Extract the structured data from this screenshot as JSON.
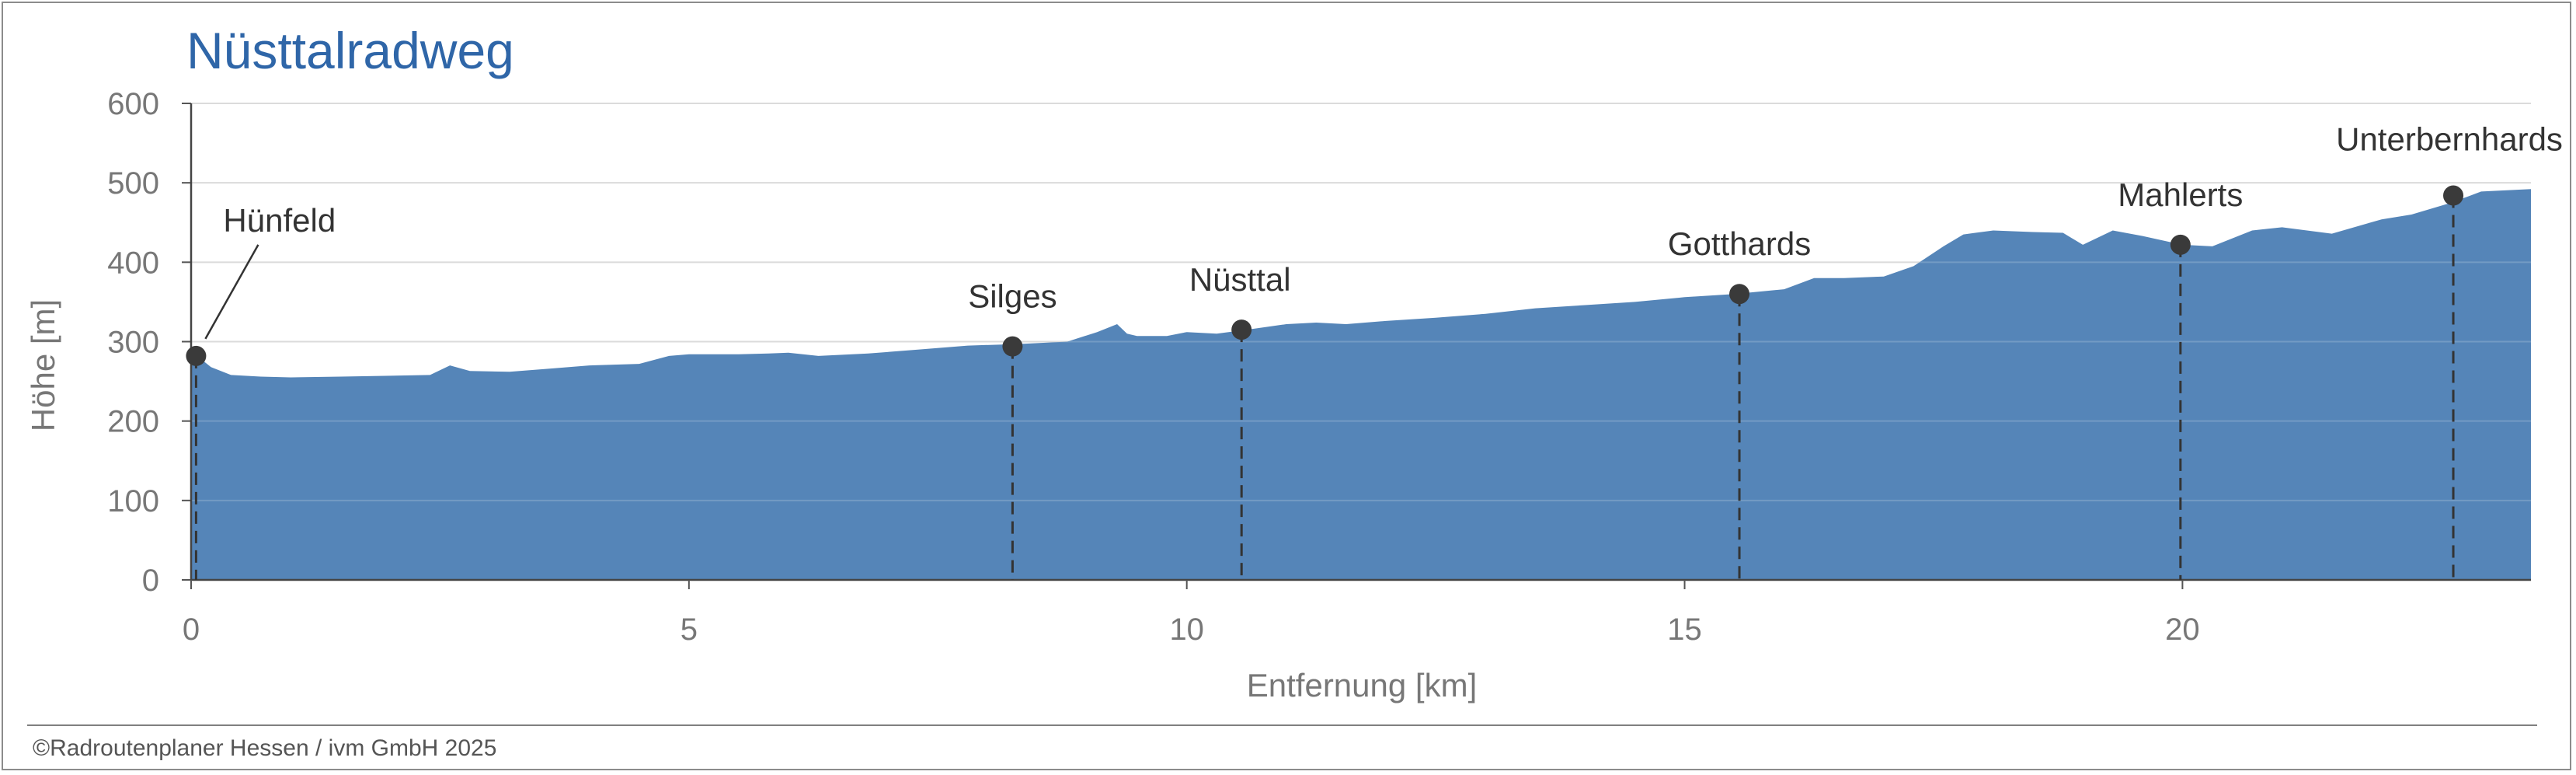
{
  "chart_data": {
    "type": "area",
    "title": "Nüsttalradweg",
    "xlabel": "Entfernung [km]",
    "ylabel": "Höhe [m]",
    "xlim": [
      0,
      23.5
    ],
    "ylim": [
      0,
      600
    ],
    "xticks": [
      0,
      5,
      10,
      15,
      20
    ],
    "yticks": [
      0,
      100,
      200,
      300,
      400,
      500,
      600
    ],
    "grid": true,
    "fill_color": "#5585b8",
    "series": [
      {
        "x": [
          0,
          0.1,
          0.2,
          0.4,
          0.7,
          1.0,
          1.5,
          2.0,
          2.4,
          2.6,
          2.8,
          3.2,
          3.6,
          4.0,
          4.5,
          4.8,
          5.0,
          5.5,
          5.8,
          6.0,
          6.3,
          6.8,
          7.3,
          7.8,
          8.3,
          8.8,
          9.1,
          9.3,
          9.4,
          9.5,
          9.8,
          10.0,
          10.3,
          10.6,
          11.0,
          11.3,
          11.6,
          12.0,
          12.5,
          13.0,
          13.5,
          14.0,
          14.5,
          15.0,
          15.5,
          16.0,
          16.3,
          16.6,
          17.0,
          17.3,
          17.6,
          17.8,
          18.1,
          18.5,
          18.8,
          19.0,
          19.3,
          19.6,
          20.0,
          20.3,
          20.7,
          21.0,
          21.5,
          22.0,
          22.3,
          22.7,
          23.0,
          23.5
        ],
        "y": [
          282,
          278,
          268,
          258,
          256,
          255,
          256,
          257,
          258,
          270,
          263,
          262,
          266,
          270,
          272,
          282,
          284,
          284,
          285,
          286,
          282,
          285,
          290,
          295,
          297,
          300,
          312,
          322,
          310,
          307,
          307,
          312,
          310,
          315,
          322,
          324,
          322,
          326,
          330,
          335,
          342,
          346,
          350,
          356,
          360,
          366,
          380,
          380,
          382,
          395,
          420,
          435,
          440,
          438,
          437,
          422,
          440,
          433,
          422,
          420,
          440,
          444,
          436,
          454,
          460,
          475,
          489,
          492
        ]
      }
    ],
    "markers": [
      {
        "name": "Hünfeld",
        "x": 0.05,
        "y": 282
      },
      {
        "name": "Silges",
        "x": 8.25,
        "y": 294
      },
      {
        "name": "Nüsttal",
        "x": 10.55,
        "y": 315
      },
      {
        "name": "Gotthards",
        "x": 15.55,
        "y": 360
      },
      {
        "name": "Mahlerts",
        "x": 19.98,
        "y": 422
      },
      {
        "name": "Unterbernhards",
        "x": 22.72,
        "y": 484
      }
    ]
  },
  "credit": "©Radroutenplaner Hessen / ivm GmbH 2025"
}
